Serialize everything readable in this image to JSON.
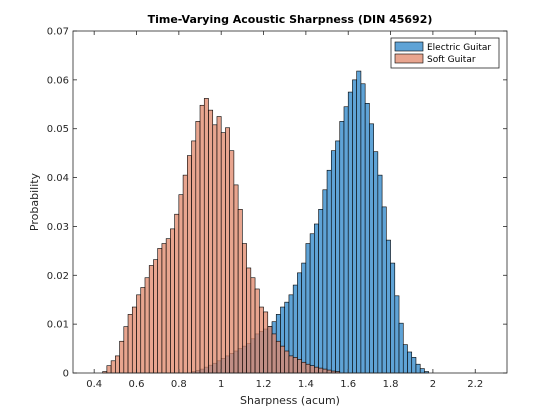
{
  "chart_data": {
    "type": "bar",
    "title": "Time-Varying Acoustic Sharpness (DIN 45692)",
    "xlabel": "Sharpness (acum)",
    "ylabel": "Probability",
    "xlim": [
      0.3,
      2.35
    ],
    "ylim": [
      0,
      0.07
    ],
    "xticks": [
      0.4,
      0.6,
      0.8,
      1,
      1.2,
      1.4,
      1.6,
      1.8,
      2,
      2.2
    ],
    "yticks": [
      0,
      0.01,
      0.02,
      0.03,
      0.04,
      0.05,
      0.06,
      0.07
    ],
    "grid": false,
    "legend_position": "top-right",
    "bin_width": 0.02,
    "series": [
      {
        "name": "Electric Guitar",
        "color": "#5fa3d6",
        "bin_start": 0.86,
        "values": [
          0.0003,
          0.0005,
          0.0008,
          0.0012,
          0.0016,
          0.002,
          0.0025,
          0.003,
          0.0035,
          0.004,
          0.0045,
          0.005,
          0.0055,
          0.006,
          0.007,
          0.008,
          0.0085,
          0.009,
          0.0095,
          0.0105,
          0.012,
          0.0135,
          0.0145,
          0.016,
          0.018,
          0.0205,
          0.0225,
          0.0265,
          0.0285,
          0.0305,
          0.0335,
          0.0375,
          0.0415,
          0.0455,
          0.0475,
          0.0515,
          0.0545,
          0.0575,
          0.06,
          0.0618,
          0.0592,
          0.0552,
          0.051,
          0.0453,
          0.0405,
          0.034,
          0.0272,
          0.0225,
          0.0158,
          0.0102,
          0.0058,
          0.0043,
          0.0032,
          0.0018,
          0.0009,
          0.0003
        ]
      },
      {
        "name": "Soft Guitar",
        "color": "#e0876a",
        "bin_start": 0.44,
        "values": [
          0.0003,
          0.0015,
          0.0025,
          0.0035,
          0.0065,
          0.0095,
          0.012,
          0.0135,
          0.016,
          0.0175,
          0.0195,
          0.022,
          0.0232,
          0.0255,
          0.0265,
          0.0275,
          0.0295,
          0.0325,
          0.0365,
          0.0405,
          0.0445,
          0.0475,
          0.0515,
          0.0548,
          0.0562,
          0.0538,
          0.0508,
          0.0525,
          0.0492,
          0.0502,
          0.0455,
          0.0385,
          0.0335,
          0.0265,
          0.0215,
          0.0195,
          0.0172,
          0.0135,
          0.0125,
          0.0095,
          0.008,
          0.0065,
          0.0055,
          0.0045,
          0.0035,
          0.0032,
          0.0028,
          0.0022,
          0.0018,
          0.0015,
          0.0012,
          0.001,
          0.0008,
          0.0006,
          0.0004,
          0.0003
        ]
      }
    ]
  }
}
